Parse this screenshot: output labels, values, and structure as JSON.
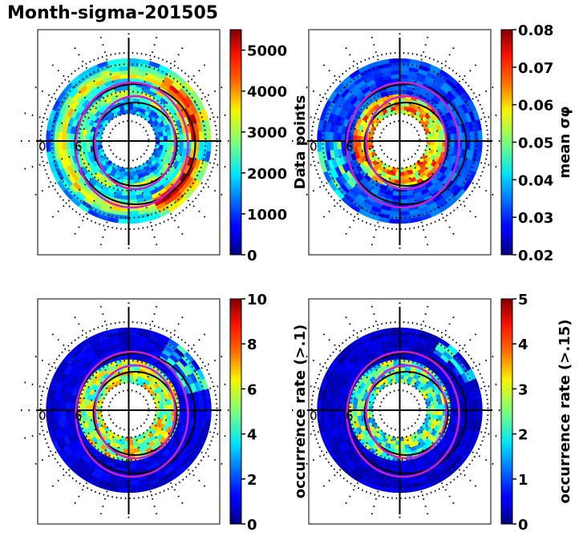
{
  "title": "Month-sigma-201505",
  "chart_data": [
    {
      "type": "heatmap",
      "projection": "polar",
      "colormap": "jet",
      "colorbar_label": "Data points",
      "colorbar_ticks": [
        "0",
        "1000",
        "2000",
        "3000",
        "4000",
        "5000"
      ],
      "vmin": 0,
      "vmax": 5500,
      "panel_labels": [
        "0",
        "6"
      ]
    },
    {
      "type": "heatmap",
      "projection": "polar",
      "colormap": "jet",
      "colorbar_label": "mean σφ",
      "colorbar_ticks": [
        "0.02",
        "0.03",
        "0.04",
        "0.05",
        "0.06",
        "0.07",
        "0.08"
      ],
      "vmin": 0.02,
      "vmax": 0.08,
      "panel_labels": [
        "0",
        "6"
      ]
    },
    {
      "type": "heatmap",
      "projection": "polar",
      "colormap": "jet",
      "colorbar_label": "occurrence rate (>.1)",
      "colorbar_ticks": [
        "0",
        "2",
        "4",
        "6",
        "8",
        "10"
      ],
      "vmin": 0,
      "vmax": 10,
      "panel_labels": [
        "0",
        "6"
      ]
    },
    {
      "type": "heatmap",
      "projection": "polar",
      "colormap": "jet",
      "colorbar_label": "occurrence rate (>.15)",
      "colorbar_ticks": [
        "0",
        "1",
        "2",
        "3",
        "4",
        "5"
      ],
      "vmin": 0,
      "vmax": 5,
      "panel_labels": [
        "0",
        "6"
      ]
    }
  ]
}
